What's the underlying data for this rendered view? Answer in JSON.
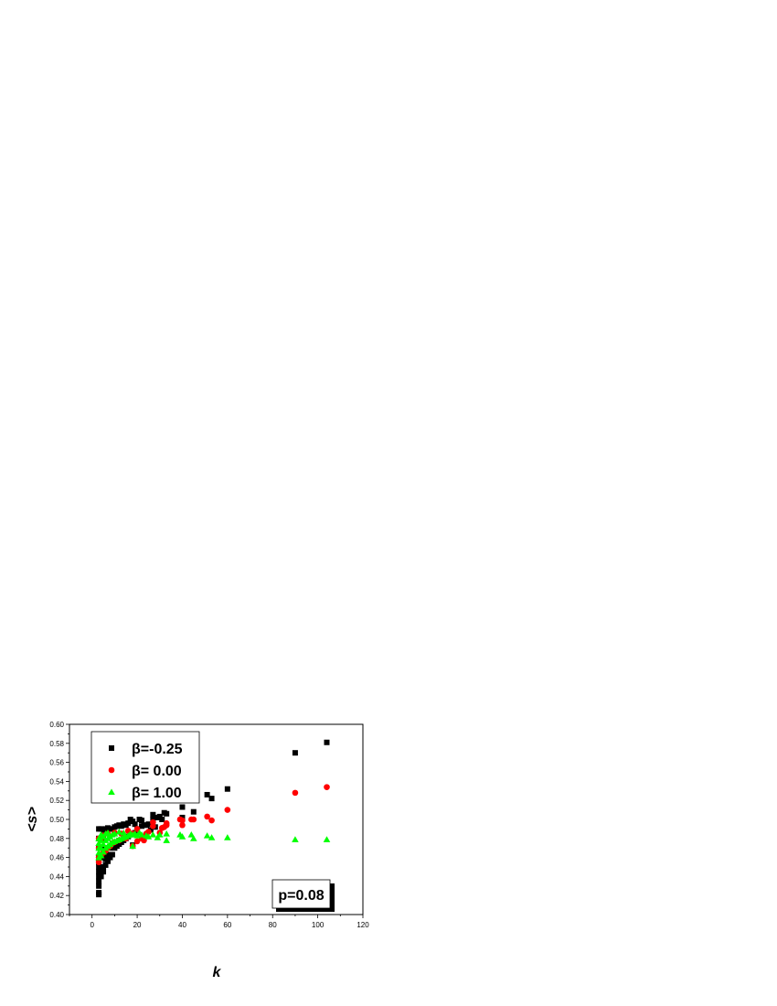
{
  "chart_data": {
    "type": "scatter",
    "title": "",
    "xlabel": "k",
    "ylabel": "<s>",
    "xlim": [
      -10,
      120
    ],
    "ylim": [
      0.4,
      0.6
    ],
    "xticks": [
      "0",
      "20",
      "40",
      "60",
      "80",
      "100",
      "120"
    ],
    "yticks": [
      "0.40",
      "0.42",
      "0.44",
      "0.46",
      "0.48",
      "0.50",
      "0.52",
      "0.54",
      "0.56",
      "0.58",
      "0.60"
    ],
    "grid": false,
    "legend_position": "top-left",
    "annotation": "p=0.08",
    "series": [
      {
        "name": "β=-0.25",
        "marker": "square",
        "color": "#000000",
        "points": [
          [
            3,
            0.421
          ],
          [
            3,
            0.423
          ],
          [
            3,
            0.43
          ],
          [
            3,
            0.435
          ],
          [
            3,
            0.44
          ],
          [
            3,
            0.445
          ],
          [
            3,
            0.45
          ],
          [
            3,
            0.455
          ],
          [
            3,
            0.46
          ],
          [
            3,
            0.47
          ],
          [
            3,
            0.48
          ],
          [
            3,
            0.49
          ],
          [
            4,
            0.44
          ],
          [
            4,
            0.445
          ],
          [
            4,
            0.45
          ],
          [
            4,
            0.46
          ],
          [
            4,
            0.47
          ],
          [
            4,
            0.48
          ],
          [
            4,
            0.49
          ],
          [
            5,
            0.445
          ],
          [
            5,
            0.45
          ],
          [
            5,
            0.46
          ],
          [
            5,
            0.48
          ],
          [
            5,
            0.489
          ],
          [
            6,
            0.452
          ],
          [
            6,
            0.458
          ],
          [
            6,
            0.47
          ],
          [
            6,
            0.49
          ],
          [
            7,
            0.456
          ],
          [
            7,
            0.463
          ],
          [
            7,
            0.491
          ],
          [
            8,
            0.46
          ],
          [
            8,
            0.47
          ],
          [
            8,
            0.49
          ],
          [
            9,
            0.463
          ],
          [
            9,
            0.475
          ],
          [
            9,
            0.49
          ],
          [
            10,
            0.47
          ],
          [
            10,
            0.492
          ],
          [
            11,
            0.472
          ],
          [
            11,
            0.493
          ],
          [
            12,
            0.474
          ],
          [
            12,
            0.494
          ],
          [
            13,
            0.476
          ],
          [
            13,
            0.493
          ],
          [
            14,
            0.478
          ],
          [
            14,
            0.495
          ],
          [
            15,
            0.48
          ],
          [
            15,
            0.494
          ],
          [
            16,
            0.482
          ],
          [
            16,
            0.496
          ],
          [
            17,
            0.484
          ],
          [
            17,
            0.5
          ],
          [
            18,
            0.473
          ],
          [
            18,
            0.498
          ],
          [
            19,
            0.486
          ],
          [
            19,
            0.495
          ],
          [
            20,
            0.49
          ],
          [
            21,
            0.5
          ],
          [
            22,
            0.499
          ],
          [
            22,
            0.493
          ],
          [
            23,
            0.494
          ],
          [
            24,
            0.494
          ],
          [
            25,
            0.495
          ],
          [
            26,
            0.489
          ],
          [
            27,
            0.5
          ],
          [
            27,
            0.505
          ],
          [
            28,
            0.492
          ],
          [
            29,
            0.502
          ],
          [
            30,
            0.503
          ],
          [
            31,
            0.5
          ],
          [
            32,
            0.507
          ],
          [
            33,
            0.506
          ],
          [
            39,
            0.524
          ],
          [
            40,
            0.502
          ],
          [
            40,
            0.513
          ],
          [
            44,
            0.524
          ],
          [
            45,
            0.508
          ],
          [
            51,
            0.526
          ],
          [
            53,
            0.522
          ],
          [
            60,
            0.532
          ],
          [
            90,
            0.57
          ],
          [
            104,
            0.581
          ]
        ]
      },
      {
        "name": "β= 0.00",
        "marker": "circle",
        "color": "#ff0000",
        "points": [
          [
            3,
            0.455
          ],
          [
            3,
            0.46
          ],
          [
            3,
            0.47
          ],
          [
            3,
            0.48
          ],
          [
            4,
            0.462
          ],
          [
            4,
            0.48
          ],
          [
            5,
            0.465
          ],
          [
            5,
            0.483
          ],
          [
            6,
            0.467
          ],
          [
            7,
            0.47
          ],
          [
            7,
            0.485
          ],
          [
            8,
            0.472
          ],
          [
            9,
            0.475
          ],
          [
            10,
            0.476
          ],
          [
            10,
            0.486
          ],
          [
            12,
            0.478
          ],
          [
            13,
            0.485
          ],
          [
            15,
            0.48
          ],
          [
            16,
            0.488
          ],
          [
            18,
            0.472
          ],
          [
            18,
            0.485
          ],
          [
            20,
            0.477
          ],
          [
            20,
            0.49
          ],
          [
            22,
            0.48
          ],
          [
            23,
            0.478
          ],
          [
            24,
            0.485
          ],
          [
            25,
            0.487
          ],
          [
            27,
            0.497
          ],
          [
            27,
            0.493
          ],
          [
            30,
            0.486
          ],
          [
            31,
            0.491
          ],
          [
            32,
            0.492
          ],
          [
            33,
            0.496
          ],
          [
            33,
            0.494
          ],
          [
            39,
            0.5
          ],
          [
            40,
            0.494
          ],
          [
            40,
            0.499
          ],
          [
            44,
            0.5
          ],
          [
            45,
            0.5
          ],
          [
            51,
            0.503
          ],
          [
            53,
            0.499
          ],
          [
            60,
            0.51
          ],
          [
            90,
            0.528
          ],
          [
            104,
            0.534
          ]
        ]
      },
      {
        "name": "β= 1.00",
        "marker": "triangle",
        "color": "#00ff00",
        "points": [
          [
            3,
            0.46
          ],
          [
            3,
            0.465
          ],
          [
            3,
            0.47
          ],
          [
            3,
            0.475
          ],
          [
            3,
            0.48
          ],
          [
            4,
            0.462
          ],
          [
            4,
            0.47
          ],
          [
            4,
            0.478
          ],
          [
            4,
            0.484
          ],
          [
            5,
            0.466
          ],
          [
            5,
            0.474
          ],
          [
            5,
            0.482
          ],
          [
            6,
            0.47
          ],
          [
            6,
            0.478
          ],
          [
            6,
            0.485
          ],
          [
            7,
            0.472
          ],
          [
            7,
            0.48
          ],
          [
            7,
            0.486
          ],
          [
            8,
            0.474
          ],
          [
            8,
            0.482
          ],
          [
            9,
            0.476
          ],
          [
            9,
            0.484
          ],
          [
            10,
            0.477
          ],
          [
            10,
            0.485
          ],
          [
            11,
            0.478
          ],
          [
            12,
            0.479
          ],
          [
            12,
            0.487
          ],
          [
            13,
            0.48
          ],
          [
            14,
            0.481
          ],
          [
            14,
            0.486
          ],
          [
            15,
            0.482
          ],
          [
            16,
            0.483
          ],
          [
            17,
            0.485
          ],
          [
            18,
            0.472
          ],
          [
            18,
            0.484
          ],
          [
            19,
            0.485
          ],
          [
            20,
            0.483
          ],
          [
            21,
            0.486
          ],
          [
            22,
            0.484
          ],
          [
            24,
            0.483
          ],
          [
            25,
            0.482
          ],
          [
            27,
            0.484
          ],
          [
            29,
            0.481
          ],
          [
            30,
            0.484
          ],
          [
            33,
            0.478
          ],
          [
            33,
            0.485
          ],
          [
            39,
            0.484
          ],
          [
            40,
            0.482
          ],
          [
            44,
            0.484
          ],
          [
            45,
            0.48
          ],
          [
            51,
            0.483
          ],
          [
            53,
            0.481
          ],
          [
            60,
            0.481
          ],
          [
            90,
            0.479
          ],
          [
            104,
            0.479
          ]
        ]
      }
    ]
  }
}
